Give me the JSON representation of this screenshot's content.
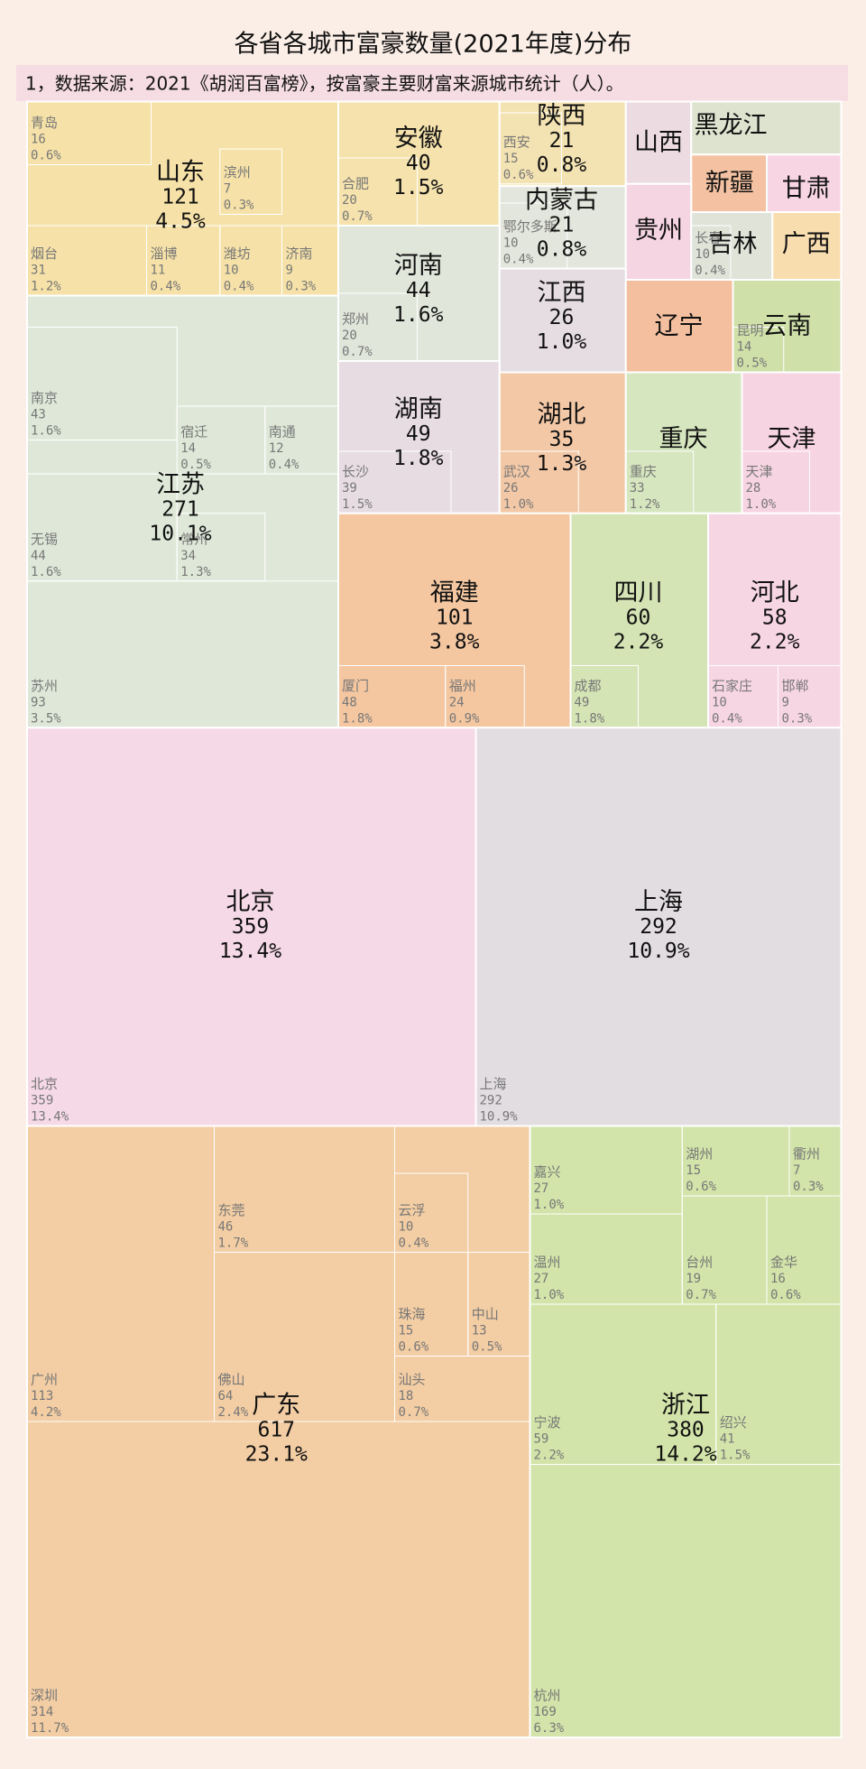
{
  "chart_data": {
    "type": "treemap",
    "title": "各省各城市富豪数量(2021年度)分布",
    "subtitle": "1，数据来源：2021《胡润百富榜》，按富豪主要财富来源城市统计（人）。",
    "provinces": [
      {
        "name": "山东",
        "value": 121,
        "share": {
          "value": 4.5,
          "label": "4.5%"
        },
        "color": "#f6e2a8",
        "cities": [
          {
            "name": "青岛",
            "value": 16,
            "share": {
              "value": 0.6,
              "label": "0.6%"
            }
          },
          {
            "name": "滨州",
            "value": 7,
            "share": {
              "value": 0.3,
              "label": "0.3%"
            }
          },
          {
            "name": "烟台",
            "value": 31,
            "share": {
              "value": 1.2,
              "label": "1.2%"
            }
          },
          {
            "name": "淄博",
            "value": 11,
            "share": {
              "value": 0.4,
              "label": "0.4%"
            }
          },
          {
            "name": "潍坊",
            "value": 10,
            "share": {
              "value": 0.4,
              "label": "0.4%"
            }
          },
          {
            "name": "济南",
            "value": 9,
            "share": {
              "value": 0.3,
              "label": "0.3%"
            }
          }
        ]
      },
      {
        "name": "安徽",
        "value": 40,
        "share": {
          "value": 1.5,
          "label": "1.5%"
        },
        "color": "#f5e2ac",
        "cities": [
          {
            "name": "合肥",
            "value": 20,
            "share": {
              "value": 0.7,
              "label": "0.7%"
            }
          }
        ]
      },
      {
        "name": "陕西",
        "value": 21,
        "share": {
          "value": 0.8,
          "label": "0.8%"
        },
        "color": "#f4e3b2",
        "cities": [
          {
            "name": "西安",
            "value": 15,
            "share": {
              "value": 0.6,
              "label": "0.6%"
            }
          }
        ]
      },
      {
        "name": "内蒙古",
        "value": 21,
        "share": {
          "value": 0.8,
          "label": "0.8%"
        },
        "color": "#e3e6dc",
        "cities": [
          {
            "name": "鄂尔多斯",
            "value": 10,
            "share": {
              "value": 0.4,
              "label": "0.4%"
            }
          }
        ]
      },
      {
        "name": "山西",
        "color": "#ecdce2",
        "cities": []
      },
      {
        "name": "黑龙江",
        "color": "#dde3cf",
        "cities": []
      },
      {
        "name": "新疆",
        "color": "#f4c2a2",
        "cities": []
      },
      {
        "name": "甘肃",
        "color": "#f7d5e2",
        "cities": []
      },
      {
        "name": "贵州",
        "color": "#f5d5e1",
        "cities": []
      },
      {
        "name": "吉林",
        "color": "#dfe3d8",
        "cities": [
          {
            "name": "长春",
            "value": 10,
            "share": {
              "value": 0.4,
              "label": "0.4%"
            }
          }
        ]
      },
      {
        "name": "广西",
        "color": "#f8ddaf",
        "cities": []
      },
      {
        "name": "河南",
        "value": 44,
        "share": {
          "value": 1.6,
          "label": "1.6%"
        },
        "color": "#e1e6db",
        "cities": [
          {
            "name": "郑州",
            "value": 20,
            "share": {
              "value": 0.7,
              "label": "0.7%"
            }
          }
        ]
      },
      {
        "name": "江西",
        "value": 26,
        "share": {
          "value": 1.0,
          "label": "1.0%"
        },
        "color": "#e6dde2",
        "cities": []
      },
      {
        "name": "辽宁",
        "color": "#f3bf9f",
        "cities": []
      },
      {
        "name": "云南",
        "color": "#cfe0a9",
        "cities": [
          {
            "name": "昆明",
            "value": 14,
            "share": {
              "value": 0.5,
              "label": "0.5%"
            }
          }
        ]
      },
      {
        "name": "江苏",
        "value": 271,
        "share": {
          "value": 10.1,
          "label": "10.1%"
        },
        "color": "#dfe8d8",
        "cities": [
          {
            "name": "南京",
            "value": 43,
            "share": {
              "value": 1.6,
              "label": "1.6%"
            }
          },
          {
            "name": "宿迁",
            "value": 14,
            "share": {
              "value": 0.5,
              "label": "0.5%"
            }
          },
          {
            "name": "南通",
            "value": 12,
            "share": {
              "value": 0.4,
              "label": "0.4%"
            }
          },
          {
            "name": "无锡",
            "value": 44,
            "share": {
              "value": 1.6,
              "label": "1.6%"
            }
          },
          {
            "name": "常州",
            "value": 34,
            "share": {
              "value": 1.3,
              "label": "1.3%"
            }
          },
          {
            "name": "苏州",
            "value": 93,
            "share": {
              "value": 3.5,
              "label": "3.5%"
            }
          }
        ]
      },
      {
        "name": "湖南",
        "value": 49,
        "share": {
          "value": 1.8,
          "label": "1.8%"
        },
        "color": "#e7dce2",
        "cities": [
          {
            "name": "长沙",
            "value": 39,
            "share": {
              "value": 1.5,
              "label": "1.5%"
            }
          }
        ]
      },
      {
        "name": "湖北",
        "value": 35,
        "share": {
          "value": 1.3,
          "label": "1.3%"
        },
        "color": "#f3c8a6",
        "cities": [
          {
            "name": "武汉",
            "value": 26,
            "share": {
              "value": 1.0,
              "label": "1.0%"
            }
          }
        ]
      },
      {
        "name": "重庆",
        "color": "#d6e6bf",
        "cities": [
          {
            "name": "重庆",
            "value": 33,
            "share": {
              "value": 1.2,
              "label": "1.2%"
            }
          }
        ]
      },
      {
        "name": "天津",
        "color": "#f7d4e1",
        "cities": [
          {
            "name": "天津",
            "value": 28,
            "share": {
              "value": 1.0,
              "label": "1.0%"
            }
          }
        ]
      },
      {
        "name": "福建",
        "value": 101,
        "share": {
          "value": 3.8,
          "label": "3.8%"
        },
        "color": "#f4c7a1",
        "cities": [
          {
            "name": "厦门",
            "value": 48,
            "share": {
              "value": 1.8,
              "label": "1.8%"
            }
          },
          {
            "name": "福州",
            "value": 24,
            "share": {
              "value": 0.9,
              "label": "0.9%"
            }
          }
        ]
      },
      {
        "name": "四川",
        "value": 60,
        "share": {
          "value": 2.2,
          "label": "2.2%"
        },
        "color": "#d5e4b5",
        "cities": [
          {
            "name": "成都",
            "value": 49,
            "share": {
              "value": 1.8,
              "label": "1.8%"
            }
          }
        ]
      },
      {
        "name": "河北",
        "value": 58,
        "share": {
          "value": 2.2,
          "label": "2.2%"
        },
        "color": "#f7d6e3",
        "cities": [
          {
            "name": "石家庄",
            "value": 10,
            "share": {
              "value": 0.4,
              "label": "0.4%"
            }
          },
          {
            "name": "邯郸",
            "value": 9,
            "share": {
              "value": 0.3,
              "label": "0.3%"
            }
          }
        ]
      },
      {
        "name": "北京",
        "value": 359,
        "share": {
          "value": 13.4,
          "label": "13.4%"
        },
        "color": "#f5d9e6",
        "cities": [
          {
            "name": "北京",
            "value": 359,
            "share": {
              "value": 13.4,
              "label": "13.4%"
            }
          }
        ]
      },
      {
        "name": "上海",
        "value": 292,
        "share": {
          "value": 10.9,
          "label": "10.9%"
        },
        "color": "#e2dde1",
        "cities": [
          {
            "name": "上海",
            "value": 292,
            "share": {
              "value": 10.9,
              "label": "10.9%"
            }
          }
        ]
      },
      {
        "name": "广东",
        "value": 617,
        "share": {
          "value": 23.1,
          "label": "23.1%"
        },
        "color": "#f3cda3",
        "cities": [
          {
            "name": "东莞",
            "value": 46,
            "share": {
              "value": 1.7,
              "label": "1.7%"
            }
          },
          {
            "name": "云浮",
            "value": 10,
            "share": {
              "value": 0.4,
              "label": "0.4%"
            }
          },
          {
            "name": "珠海",
            "value": 15,
            "share": {
              "value": 0.6,
              "label": "0.6%"
            }
          },
          {
            "name": "中山",
            "value": 13,
            "share": {
              "value": 0.5,
              "label": "0.5%"
            }
          },
          {
            "name": "广州",
            "value": 113,
            "share": {
              "value": 4.2,
              "label": "4.2%"
            }
          },
          {
            "name": "佛山",
            "value": 64,
            "share": {
              "value": 2.4,
              "label": "2.4%"
            }
          },
          {
            "name": "汕头",
            "value": 18,
            "share": {
              "value": 0.7,
              "label": "0.7%"
            }
          },
          {
            "name": "深圳",
            "value": 314,
            "share": {
              "value": 11.7,
              "label": "11.7%"
            }
          }
        ]
      },
      {
        "name": "浙江",
        "value": 380,
        "share": {
          "value": 14.2,
          "label": "14.2%"
        },
        "color": "#d2e4a9",
        "cities": [
          {
            "name": "嘉兴",
            "value": 27,
            "share": {
              "value": 1.0,
              "label": "1.0%"
            }
          },
          {
            "name": "湖州",
            "value": 15,
            "share": {
              "value": 0.6,
              "label": "0.6%"
            }
          },
          {
            "name": "衢州",
            "value": 7,
            "share": {
              "value": 0.3,
              "label": "0.3%"
            }
          },
          {
            "name": "温州",
            "value": 27,
            "share": {
              "value": 1.0,
              "label": "1.0%"
            }
          },
          {
            "name": "台州",
            "value": 19,
            "share": {
              "value": 0.7,
              "label": "0.7%"
            }
          },
          {
            "name": "金华",
            "value": 16,
            "share": {
              "value": 0.6,
              "label": "0.6%"
            }
          },
          {
            "name": "宁波",
            "value": 59,
            "share": {
              "value": 2.2,
              "label": "2.2%"
            }
          },
          {
            "name": "绍兴",
            "value": 41,
            "share": {
              "value": 1.5,
              "label": "1.5%"
            }
          },
          {
            "name": "杭州",
            "value": 169,
            "share": {
              "value": 6.3,
              "label": "6.3%"
            }
          }
        ]
      }
    ]
  }
}
